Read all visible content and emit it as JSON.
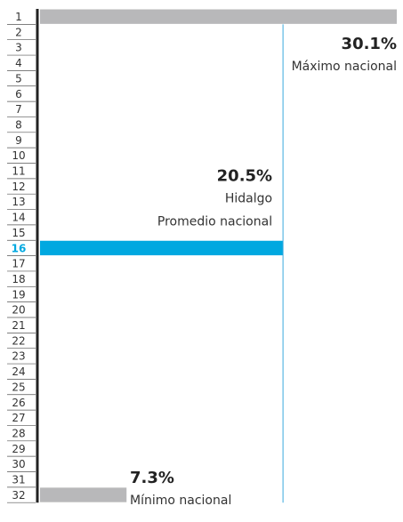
{
  "chart_data": {
    "type": "bar",
    "orientation": "horizontal",
    "categories": [
      "1",
      "2",
      "3",
      "4",
      "5",
      "6",
      "7",
      "8",
      "9",
      "10",
      "11",
      "12",
      "13",
      "14",
      "15",
      "16",
      "17",
      "18",
      "19",
      "20",
      "21",
      "22",
      "23",
      "24",
      "25",
      "26",
      "27",
      "28",
      "29",
      "30",
      "31",
      "32"
    ],
    "series": [
      {
        "values": [
          30.1,
          null,
          null,
          null,
          null,
          null,
          null,
          null,
          null,
          null,
          null,
          null,
          null,
          null,
          null,
          20.5,
          null,
          null,
          null,
          null,
          null,
          null,
          null,
          null,
          null,
          null,
          null,
          null,
          null,
          null,
          null,
          7.3
        ]
      }
    ],
    "xlim": [
      0,
      30.1
    ],
    "highlight_rank": "16",
    "reference_line": {
      "value": 20.5
    },
    "annotations": [
      {
        "rank": "1",
        "value": "30.1%",
        "label": "Máximo nacional"
      },
      {
        "rank": "16",
        "value": "20.5%",
        "label": "Hidalgo",
        "sublabel": "Promedio nacional"
      },
      {
        "rank": "32",
        "value": "7.3%",
        "label": "Mínimo nacional"
      }
    ],
    "colors": {
      "highlight": "#00a8e0",
      "bar": "#b8b8ba",
      "axis": "#222222",
      "ref_line": "#3aa9de"
    }
  }
}
